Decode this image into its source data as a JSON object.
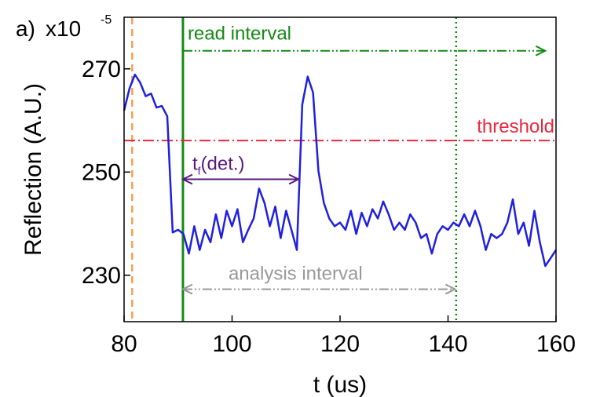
{
  "chart_data": {
    "type": "line",
    "panel_label": "a)",
    "y_scale_label": "x10",
    "y_scale_exponent": "-5",
    "xlabel": "t (us)",
    "ylabel": "Reflection (A.U.)",
    "x": [
      80,
      81,
      82,
      83,
      84,
      85,
      86,
      87,
      88,
      89,
      90,
      91,
      92,
      93,
      94,
      95,
      96,
      97,
      98,
      99,
      100,
      101,
      102,
      103,
      104,
      105,
      106,
      107,
      108,
      109,
      110,
      111,
      112,
      113,
      114,
      115,
      116,
      117,
      118,
      119,
      120,
      121,
      122,
      123,
      124,
      125,
      126,
      127,
      128,
      129,
      130,
      131,
      132,
      133,
      134,
      135,
      136,
      137,
      138,
      139,
      140,
      141,
      142,
      143,
      144,
      145,
      146,
      147,
      148,
      149,
      150,
      151,
      152,
      153,
      154,
      155,
      156,
      157,
      158,
      159,
      160
    ],
    "series": [
      {
        "color": "#1f1fe0",
        "values": [
          261.9,
          266.2,
          268.9,
          267.3,
          264.7,
          265.2,
          262.5,
          262.8,
          260.8,
          238.3,
          238.8,
          238.0,
          234.2,
          239.5,
          234.9,
          238.8,
          236.4,
          241.8,
          237.2,
          242.5,
          239.5,
          242.8,
          236.4,
          238.8,
          241.0,
          246.8,
          244.0,
          239.5,
          243.3,
          237.2,
          242.5,
          238.8,
          234.9,
          263.1,
          268.5,
          265.4,
          250.2,
          244.0,
          241.0,
          239.5,
          240.2,
          238.8,
          242.5,
          238.0,
          242.1,
          239.5,
          242.8,
          241.0,
          244.3,
          241.8,
          238.8,
          240.2,
          238.8,
          241.8,
          240.2,
          237.2,
          238.0,
          234.2,
          238.0,
          239.5,
          238.8,
          240.2,
          239.5,
          241.8,
          239.5,
          242.5,
          239.5,
          234.9,
          238.0,
          237.2,
          238.0,
          240.2,
          244.7,
          238.0,
          240.2,
          235.7,
          242.5,
          236.4,
          231.8,
          233.3,
          234.9
        ]
      }
    ],
    "xlim": [
      80,
      160
    ],
    "ylim": [
      221,
      280
    ],
    "xticks": [
      80,
      100,
      120,
      140,
      160
    ],
    "yticks": [
      230,
      250,
      270
    ],
    "vlines": [
      {
        "x": 81.5,
        "color": "#f5a050",
        "style": "dashed"
      },
      {
        "x": 90.9,
        "color": "#138a13",
        "style": "solid"
      },
      {
        "x": 141.5,
        "color": "#138a13",
        "style": "dotted"
      }
    ],
    "hline": {
      "y": 256.1,
      "color": "#e8283c",
      "label": "threshold"
    },
    "arrows": [
      {
        "label": "read interval",
        "x_start": 90.9,
        "x_end": 158,
        "y": 273.5,
        "color": "#138a13",
        "heads": "end"
      },
      {
        "label": "t",
        "label_sub": "f",
        "label_suffix": "(det.)",
        "x_start": 90.9,
        "x_end": 112.3,
        "y": 248.6,
        "color": "#5a1a80",
        "heads": "both"
      },
      {
        "label": "analysis interval",
        "x_start": 90.9,
        "x_end": 141.3,
        "y": 227.3,
        "color": "#999999",
        "heads": "both"
      }
    ]
  }
}
